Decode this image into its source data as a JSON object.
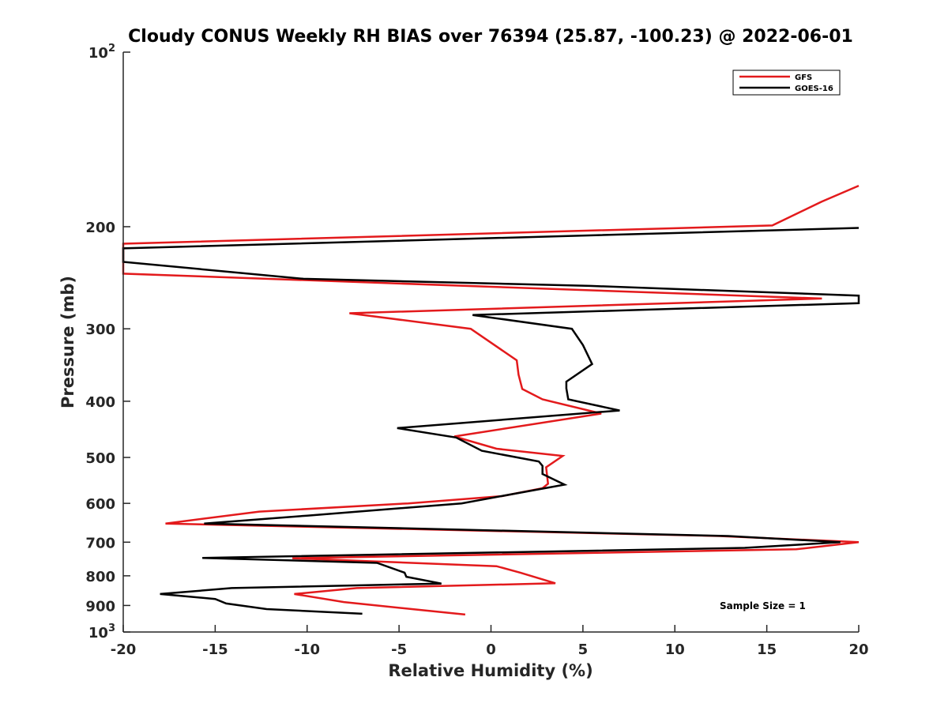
{
  "chart_data": {
    "type": "line",
    "title": "Cloudy CONUS Weekly RH BIAS over 76394 (25.87, -100.23) @ 2022-06-01",
    "xlabel": "Relative Humidity (%)",
    "ylabel": "Pressure (mb)",
    "xlim": [
      -20,
      20
    ],
    "ylim": [
      100,
      1000
    ],
    "y_scale": "log",
    "y_reversed": true,
    "grid": false,
    "legend_position": "top-right",
    "x_ticks": [
      -20,
      -15,
      -10,
      -5,
      0,
      5,
      10,
      15,
      20
    ],
    "y_ticks": [
      {
        "value": 100,
        "base": "10",
        "exp": "2"
      },
      {
        "value": 200,
        "label": "200"
      },
      {
        "value": 300,
        "label": "300"
      },
      {
        "value": 400,
        "label": "400"
      },
      {
        "value": 500,
        "label": "500"
      },
      {
        "value": 600,
        "label": "600"
      },
      {
        "value": 700,
        "label": "700"
      },
      {
        "value": 800,
        "label": "800"
      },
      {
        "value": 900,
        "label": "900"
      },
      {
        "value": 1000,
        "base": "10",
        "exp": "3"
      }
    ],
    "annotation": "Sample Size = 1",
    "series": [
      {
        "name": "GFS",
        "color": "#e31a1c",
        "points": [
          [
            20,
            170
          ],
          [
            18,
            181
          ],
          [
            15.3,
            199
          ],
          [
            -20,
            214
          ],
          [
            -20,
            241
          ],
          [
            18,
            266
          ],
          [
            -7.7,
            282
          ],
          [
            -1.1,
            300
          ],
          [
            1.4,
            340
          ],
          [
            1.5,
            360
          ],
          [
            1.7,
            381
          ],
          [
            2.8,
            397
          ],
          [
            6,
            420
          ],
          [
            -2,
            460
          ],
          [
            0.3,
            483
          ],
          [
            3.9,
            497
          ],
          [
            3,
            520
          ],
          [
            3.1,
            555
          ],
          [
            2.8,
            565
          ],
          [
            0.6,
            583
          ],
          [
            -4.5,
            600
          ],
          [
            -12.6,
            620
          ],
          [
            -17.7,
            650
          ],
          [
            12.4,
            683
          ],
          [
            20,
            700
          ],
          [
            16.6,
            720
          ],
          [
            -10.8,
            746
          ],
          [
            0.3,
            770
          ],
          [
            1.6,
            790
          ],
          [
            3.5,
            824
          ],
          [
            -7.3,
            840
          ],
          [
            -10.7,
            860
          ],
          [
            -8,
            888
          ],
          [
            -4.3,
            913
          ],
          [
            -1.4,
            933
          ]
        ]
      },
      {
        "name": "GOES-16",
        "color": "#000000",
        "points": [
          [
            20,
            201
          ],
          [
            -20,
            218
          ],
          [
            -20,
            230
          ],
          [
            -10.2,
            246
          ],
          [
            5.4,
            253
          ],
          [
            20,
            263
          ],
          [
            20,
            271
          ],
          [
            -1,
            284
          ],
          [
            4.4,
            300
          ],
          [
            5,
            320
          ],
          [
            5.5,
            345
          ],
          [
            4.1,
            370
          ],
          [
            4.1,
            380
          ],
          [
            4.2,
            397
          ],
          [
            7,
            415
          ],
          [
            -5.1,
            445
          ],
          [
            -1.9,
            462
          ],
          [
            -0.5,
            487
          ],
          [
            2.6,
            508
          ],
          [
            2.8,
            517
          ],
          [
            2.8,
            534
          ],
          [
            4.0,
            557
          ],
          [
            1.6,
            575
          ],
          [
            -1.6,
            600
          ],
          [
            -10,
            630
          ],
          [
            -15.6,
            650
          ],
          [
            12.9,
            683
          ],
          [
            19,
            700
          ],
          [
            13.8,
            716
          ],
          [
            -15.7,
            745
          ],
          [
            -6.2,
            760
          ],
          [
            -4.7,
            790
          ],
          [
            -4.6,
            803
          ],
          [
            -2.7,
            825
          ],
          [
            -14.1,
            840
          ],
          [
            -18,
            860
          ],
          [
            -15,
            877
          ],
          [
            -14.4,
            893
          ],
          [
            -12.2,
            913
          ],
          [
            -7,
            930
          ]
        ]
      }
    ]
  }
}
